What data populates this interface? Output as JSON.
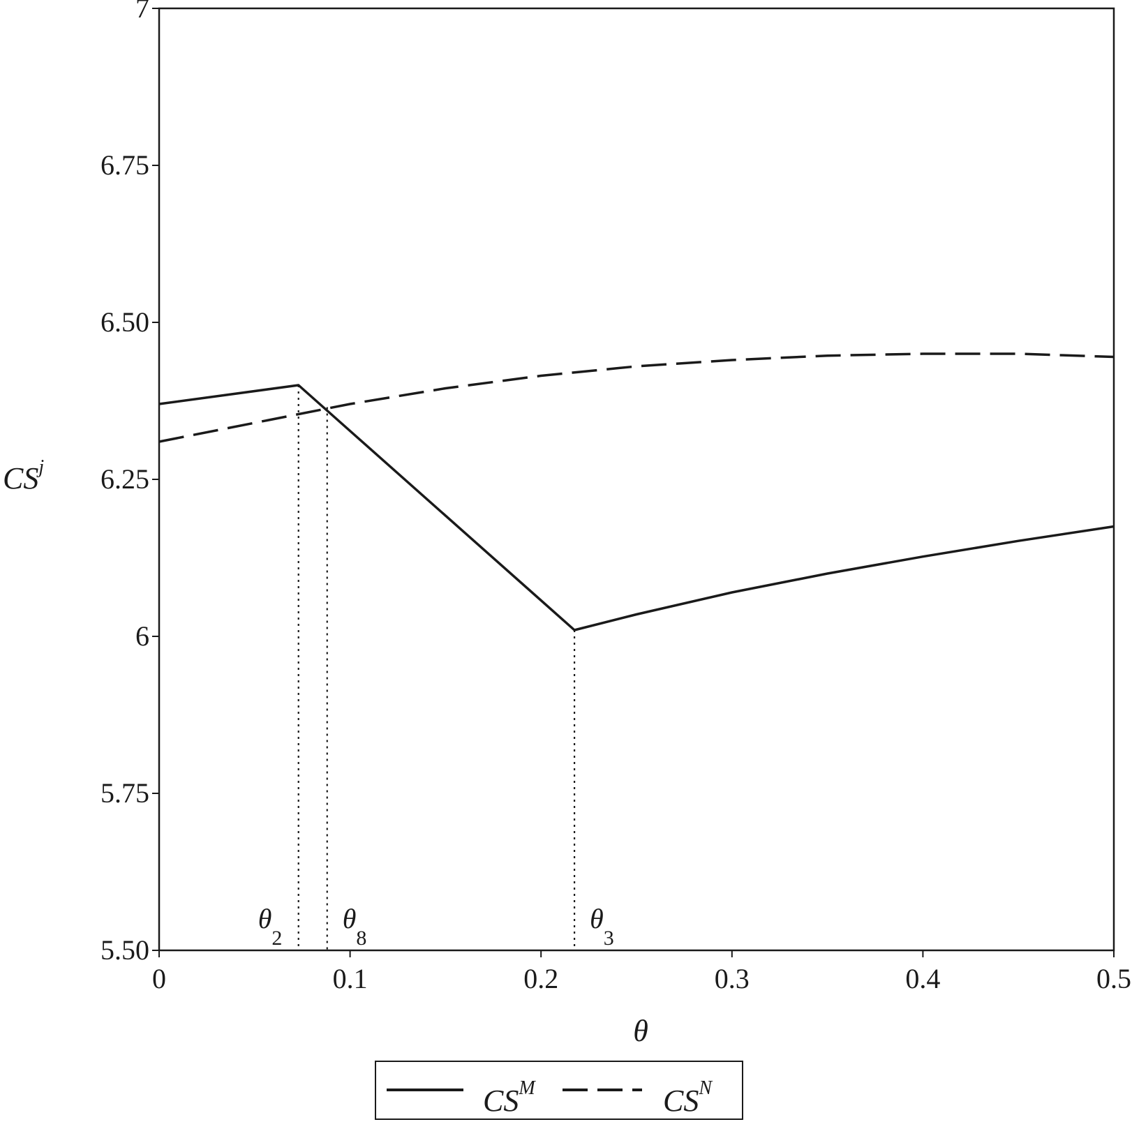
{
  "chart_data": {
    "type": "line",
    "xlabel": "θ",
    "ylabel": {
      "base": "CS",
      "superscript": "j"
    },
    "xlim": [
      0,
      0.5
    ],
    "ylim": [
      5.5,
      7
    ],
    "xticks": [
      0,
      0.1,
      0.2,
      0.3,
      0.4,
      0.5
    ],
    "xtick_labels": [
      "0",
      "0.1",
      "0.2",
      "0.3",
      "0.4",
      "0.5"
    ],
    "yticks": [
      5.5,
      5.75,
      6,
      6.25,
      6.5,
      6.75,
      7
    ],
    "ytick_labels": [
      "5.50",
      "5.75",
      "6",
      "6.25",
      "6.50",
      "6.75",
      "7"
    ],
    "grid": false,
    "legend_position": "bottom-center",
    "series": [
      {
        "name": {
          "base": "CS",
          "superscript": "M"
        },
        "style": "solid",
        "color": "#1a1a1a",
        "points": [
          [
            0,
            6.37
          ],
          [
            0.073,
            6.4
          ],
          [
            0.2175,
            6.01
          ],
          [
            0.25,
            6.035
          ],
          [
            0.3,
            6.07
          ],
          [
            0.35,
            6.1
          ],
          [
            0.4,
            6.127
          ],
          [
            0.45,
            6.152
          ],
          [
            0.5,
            6.175
          ]
        ]
      },
      {
        "name": {
          "base": "CS",
          "superscript": "N"
        },
        "style": "dashed",
        "color": "#1a1a1a",
        "points": [
          [
            0,
            6.31
          ],
          [
            0.05,
            6.34
          ],
          [
            0.1,
            6.37
          ],
          [
            0.15,
            6.395
          ],
          [
            0.2,
            6.415
          ],
          [
            0.25,
            6.43
          ],
          [
            0.3,
            6.44
          ],
          [
            0.35,
            6.447
          ],
          [
            0.4,
            6.45
          ],
          [
            0.45,
            6.45
          ],
          [
            0.5,
            6.445
          ]
        ]
      }
    ],
    "annotations": [
      {
        "base": "θ",
        "subscript": "2",
        "x": 0.073,
        "y": 6.4
      },
      {
        "base": "θ",
        "subscript": "8",
        "x": 0.088,
        "y": 6.365
      },
      {
        "base": "θ",
        "subscript": "3",
        "x": 0.2175,
        "y": 6.01
      }
    ]
  }
}
